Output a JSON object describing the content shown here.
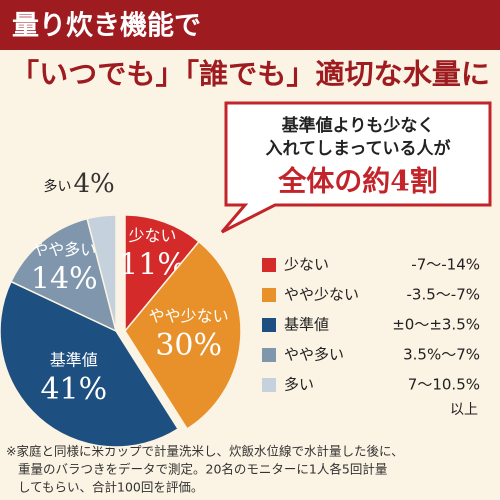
{
  "header": {
    "title": "量り炊き機能で",
    "subtitle": "「いつでも」「誰でも」適切な水量に"
  },
  "callout": {
    "lines": [
      "基準値よりも少なく",
      "入れてしまっている人が"
    ],
    "emphasis": "全体の約4割"
  },
  "chart_data": {
    "type": "pie",
    "categories": [
      "少ない",
      "やや少ない",
      "基準値",
      "やや多い",
      "多い"
    ],
    "values": [
      11,
      30,
      41,
      14,
      4
    ],
    "value_labels": [
      "11%",
      "30%",
      "41%",
      "14%",
      "4%"
    ],
    "colors": [
      "#d42a2a",
      "#e8902a",
      "#1d4f80",
      "#8096ac",
      "#c5d1dc"
    ],
    "explode": [
      true,
      true,
      false,
      false,
      false
    ],
    "ranges": [
      "-7〜-14%",
      "-3.5〜-7%",
      "±0〜±3.5%",
      "3.5%〜7%",
      "7〜10.5%"
    ],
    "range_note": "以上"
  },
  "footnote": [
    "※家庭と同様に米カップで計量洗米し、炊飯水位線で水計量した後に、",
    "重量のバラつきをデータで測定。20名のモニターに1人各5回計量",
    "してもらい、合計100回を評価。"
  ]
}
